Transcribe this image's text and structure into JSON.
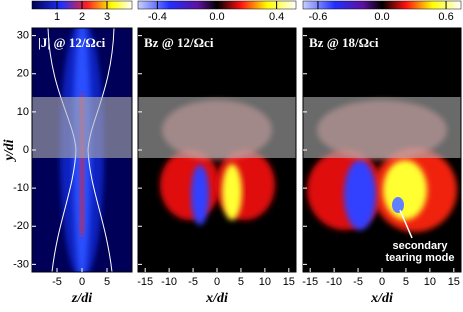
{
  "chart_data": [
    {
      "type": "heatmap",
      "title": "|J| @ 12/Ωci",
      "xlabel": "z/di",
      "ylabel": "y/di",
      "xlim": [
        -10,
        10
      ],
      "xticks": [
        -5,
        0,
        5
      ],
      "ylim": [
        -32,
        32
      ],
      "yticks": [
        30,
        20,
        10,
        0,
        -10,
        -20,
        -30
      ],
      "clim": [
        0,
        4
      ],
      "cticks": [
        1,
        2,
        3
      ],
      "show_ytick_labels": true
    },
    {
      "type": "heatmap",
      "title": "Bz @ 12/Ωci",
      "xlabel": "x/di",
      "xlim": [
        -16.5,
        16.5
      ],
      "xticks": [
        -15,
        -10,
        -5,
        0,
        5,
        10,
        15
      ],
      "ylim": [
        -32,
        32
      ],
      "yticks": [
        30,
        20,
        10,
        0,
        -10,
        -20,
        -30
      ],
      "clim": [
        -0.53,
        0.53
      ],
      "cticks": [
        -0.4,
        {
          "value": 0,
          "label": "0.0"
        },
        0.4
      ],
      "show_ytick_labels": false
    },
    {
      "type": "heatmap",
      "title": "Bz @ 18/Ωci",
      "xlabel": "x/di",
      "xlim": [
        -16.5,
        16.5
      ],
      "xticks": [
        -15,
        -10,
        -5,
        0,
        5,
        10,
        15
      ],
      "ylim": [
        -32,
        32
      ],
      "yticks": [
        30,
        20,
        10,
        0,
        -10,
        -20,
        -30
      ],
      "clim": [
        -0.74,
        0.74
      ],
      "cticks": [
        -0.6,
        {
          "value": 0,
          "label": "0.0"
        },
        0.6
      ],
      "show_ytick_labels": false,
      "annotation": "secondary tearing mode"
    }
  ]
}
